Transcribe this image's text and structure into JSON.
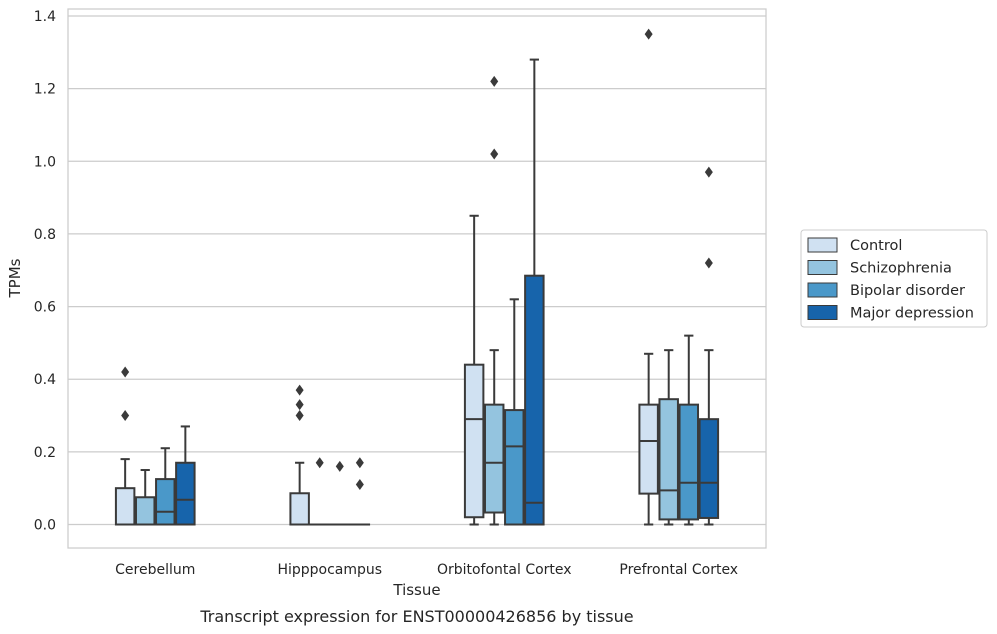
{
  "caption": "Transcript expression for ENST00000426856 by tissue",
  "chart_data": {
    "type": "box",
    "title": "",
    "xlabel": "Tissue",
    "ylabel": "TPMs",
    "ylim": [
      -0.065,
      1.42
    ],
    "yticks": [
      "0.0",
      "0.2",
      "0.4",
      "0.6",
      "0.8",
      "1.0",
      "1.2",
      "1.4"
    ],
    "ytick_values": [
      0,
      0.2,
      0.4,
      0.6,
      0.8,
      1.0,
      1.2,
      1.4
    ],
    "grid": "horizontal",
    "legend_position": "right",
    "categories": [
      "Cerebellum",
      "Hipppocampus",
      "Orbitofontal Cortex",
      "Prefrontal Cortex"
    ],
    "series": [
      {
        "name": "Control",
        "color": "#d0e1f2",
        "boxes": [
          {
            "whislo": 0,
            "q1": 0,
            "med": 0,
            "q3": 0.1,
            "whishi": 0.18,
            "fliers": [
              0.3,
              0.42
            ]
          },
          {
            "whislo": 0,
            "q1": 0,
            "med": 0,
            "q3": 0.086,
            "whishi": 0.17,
            "fliers": [
              0.3,
              0.33,
              0.37
            ]
          },
          {
            "whislo": 0,
            "q1": 0.02,
            "med": 0.29,
            "q3": 0.44,
            "whishi": 0.85,
            "fliers": []
          },
          {
            "whislo": 0,
            "q1": 0.085,
            "med": 0.23,
            "q3": 0.33,
            "whishi": 0.47,
            "fliers": [
              1.35
            ]
          }
        ]
      },
      {
        "name": "Schizophrenia",
        "color": "#94c4df",
        "boxes": [
          {
            "whislo": 0,
            "q1": 0,
            "med": 0,
            "q3": 0.075,
            "whishi": 0.15,
            "fliers": []
          },
          {
            "whislo": 0,
            "q1": 0,
            "med": 0,
            "q3": 0,
            "whishi": 0,
            "fliers": [
              0.17
            ]
          },
          {
            "whislo": 0,
            "q1": 0.033,
            "med": 0.17,
            "q3": 0.33,
            "whishi": 0.48,
            "fliers": [
              1.02,
              1.22
            ]
          },
          {
            "whislo": 0,
            "q1": 0.014,
            "med": 0.094,
            "q3": 0.345,
            "whishi": 0.48,
            "fliers": []
          }
        ]
      },
      {
        "name": "Bipolar disorder",
        "color": "#4a98c9",
        "boxes": [
          {
            "whislo": 0,
            "q1": 0,
            "med": 0.035,
            "q3": 0.125,
            "whishi": 0.21,
            "fliers": []
          },
          {
            "whislo": 0,
            "q1": 0,
            "med": 0,
            "q3": 0,
            "whishi": 0,
            "fliers": [
              0.16
            ]
          },
          {
            "whislo": 0,
            "q1": 0,
            "med": 0.215,
            "q3": 0.315,
            "whishi": 0.62,
            "fliers": []
          },
          {
            "whislo": 0,
            "q1": 0.014,
            "med": 0.115,
            "q3": 0.33,
            "whishi": 0.52,
            "fliers": []
          }
        ]
      },
      {
        "name": "Major depression",
        "color": "#1764ab",
        "boxes": [
          {
            "whislo": 0,
            "q1": 0,
            "med": 0.068,
            "q3": 0.17,
            "whishi": 0.27,
            "fliers": []
          },
          {
            "whislo": 0,
            "q1": 0,
            "med": 0,
            "q3": 0,
            "whishi": 0,
            "fliers": [
              0.11,
              0.17
            ]
          },
          {
            "whislo": 0,
            "q1": 0,
            "med": 0.06,
            "q3": 0.685,
            "whishi": 1.28,
            "fliers": []
          },
          {
            "whislo": 0,
            "q1": 0.018,
            "med": 0.115,
            "q3": 0.29,
            "whishi": 0.48,
            "fliers": [
              0.72,
              0.97
            ]
          }
        ]
      }
    ]
  }
}
